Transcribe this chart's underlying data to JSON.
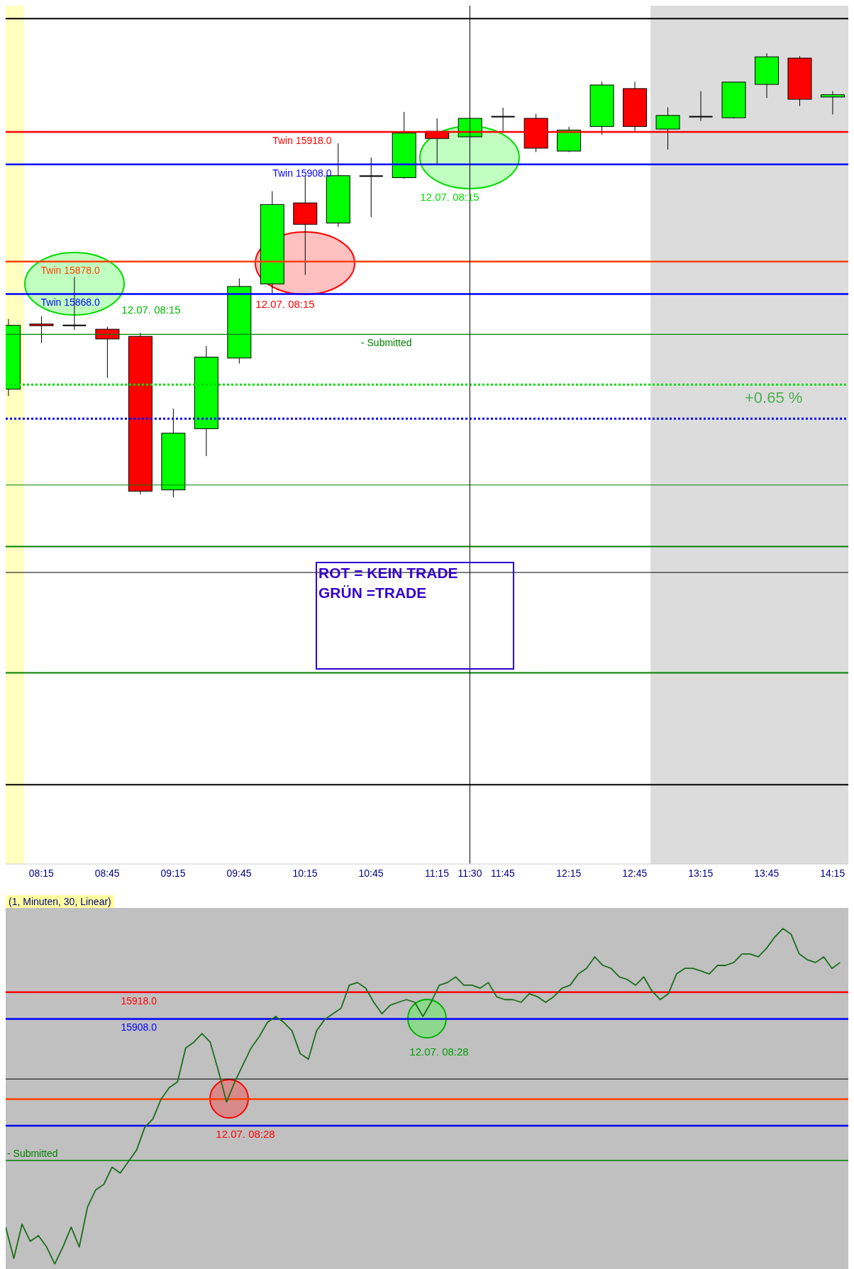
{
  "chart_data": [
    {
      "type": "candlestick",
      "x": [
        8,
        8.25,
        8.5,
        8.75,
        9,
        9.25,
        9.5,
        9.75,
        10,
        10.25,
        10.5,
        10.75,
        11,
        11.25,
        11.5,
        11.75,
        12,
        12.25,
        12.5,
        12.75,
        13,
        13.25,
        13.5,
        13.75,
        14,
        14.25
      ],
      "ohlc": [
        [
          15838.6,
          15860.3,
          15836.5,
          15858.3
        ],
        [
          15858.7,
          15861.1,
          15852.8,
          15858.2
        ],
        [
          15858.3,
          15873.2,
          15856.9,
          15858.3
        ],
        [
          15857.1,
          15857.9,
          15842.1,
          15854.1
        ],
        [
          15854.9,
          15856,
          15806.1,
          15807.1
        ],
        [
          15807.5,
          15832.6,
          15805.2,
          15825
        ],
        [
          15826.4,
          15851.9,
          15817.9,
          15848.5
        ],
        [
          15848.2,
          15872.8,
          15846.5,
          15870.3
        ],
        [
          15871.1,
          15899.7,
          15868.3,
          15895.6
        ],
        [
          15896.1,
          15904.3,
          15873.9,
          15889.5
        ],
        [
          15889.9,
          15914.5,
          15888.7,
          15904.5
        ],
        [
          15904.4,
          15910.1,
          15891.7,
          15904.4
        ],
        [
          15903.9,
          15924.2,
          15903.6,
          15917.7
        ],
        [
          15918.2,
          15922.2,
          15908.1,
          15916
        ],
        [
          15916.5,
          15922.2,
          15916.5,
          15922.2
        ],
        [
          15922.7,
          15925.5,
          15918,
          15922.7
        ],
        [
          15922.2,
          15923.6,
          15911.8,
          15913
        ],
        [
          15912.1,
          15919.6,
          15911.8,
          15918.6
        ],
        [
          15919.7,
          15933.5,
          15917.1,
          15932.5
        ],
        [
          15931.4,
          15933.5,
          15918.3,
          15919.7
        ],
        [
          15918.9,
          15925.6,
          15912.6,
          15923.1
        ],
        [
          15922.7,
          15930.6,
          15921.4,
          15922.7
        ],
        [
          15922.4,
          15933.4,
          15922.2,
          15933.4
        ],
        [
          15932.7,
          15942.3,
          15928.5,
          15941.2
        ],
        [
          15940.8,
          15941.4,
          15926,
          15928.1
        ],
        [
          15928.8,
          15930.6,
          15923.4,
          15929.5
        ]
      ],
      "colors": [
        "#00ff00",
        "#ff0000",
        "#000000",
        "#ff0000",
        "#ff0000",
        "#00ff00",
        "#00ff00",
        "#00ff00",
        "#00ff00",
        "#ff0000",
        "#00ff00",
        "#000000",
        "#00ff00",
        "#ff0000",
        "#00ff00",
        "#000000",
        "#ff0000",
        "#00ff00",
        "#00ff00",
        "#ff0000",
        "#00ff00",
        "#000000",
        "#00ff00",
        "#00ff00",
        "#ff0000",
        "#00ff00"
      ],
      "xlim": [
        7.98,
        14.37
      ],
      "ylim": [
        15692,
        15957
      ],
      "xticks": [
        {
          "value": 8.25,
          "label": "08:15"
        },
        {
          "value": 8.75,
          "label": "08:45"
        },
        {
          "value": 9.25,
          "label": "09:15"
        },
        {
          "value": 9.75,
          "label": "09:45"
        },
        {
          "value": 10.25,
          "label": "10:15"
        },
        {
          "value": 10.75,
          "label": "10:45"
        },
        {
          "value": 11.25,
          "label": "11:15"
        },
        {
          "value": 11.5,
          "label": "11:30"
        },
        {
          "value": 11.75,
          "label": "11:45"
        },
        {
          "value": 12.25,
          "label": "12:15"
        },
        {
          "value": 12.75,
          "label": "12:45"
        },
        {
          "value": 13.25,
          "label": "13:15"
        },
        {
          "value": 13.75,
          "label": "13:45"
        },
        {
          "value": 14.25,
          "label": "14:15"
        }
      ],
      "tick_labels": "x",
      "bands": [
        {
          "axis": "x",
          "from": 7.98,
          "to": 8.12,
          "color": "#ffffc0"
        },
        {
          "axis": "x",
          "from": 12.87,
          "to": 14.37,
          "color": "#dcdcdc"
        }
      ],
      "ref_lines": [
        {
          "axis": "y",
          "value": 15953,
          "color": "#000000"
        },
        {
          "axis": "y",
          "value": 15918,
          "label": "Twin 15918.0",
          "color": "#ff0000"
        },
        {
          "axis": "y",
          "value": 15908,
          "label": "Twin 15908.0",
          "color": "#0000ff"
        },
        {
          "axis": "y",
          "value": 15878,
          "label": "Twin 15878.0",
          "color": "#ff4000"
        },
        {
          "axis": "y",
          "value": 15868,
          "label": "Twin 15868.0",
          "color": "#0000ff"
        },
        {
          "axis": "y",
          "value": 15855.5,
          "label": "- Submitted",
          "color": "#008000"
        },
        {
          "axis": "y",
          "value": 15840,
          "color": "#00dd00",
          "line_style": "dotted"
        },
        {
          "axis": "y",
          "value": 15829.5,
          "color": "#0000ff",
          "line_style": "dotted"
        },
        {
          "axis": "y",
          "value": 15809,
          "color": "#008000"
        },
        {
          "axis": "y",
          "value": 15790,
          "color": "#008000"
        },
        {
          "axis": "y",
          "value": 15751,
          "color": "#008000"
        },
        {
          "axis": "y",
          "value": 15716.5,
          "color": "#000000"
        },
        {
          "axis": "y",
          "value": 15782,
          "color": "#000000"
        },
        {
          "axis": "x",
          "value": 11.5,
          "color": "#000000"
        }
      ],
      "annotations": [
        "12.07. 08:15",
        "12.07. 08:15",
        "12.07. 08:15",
        "+0.65 %",
        "ROT = KEIN TRADE",
        "GRÜN =TRADE"
      ]
    },
    {
      "type": "line",
      "subtitle": "(1, Minuten, 30, Linear)",
      "categories": [
        null,
        null,
        null,
        null,
        null,
        null,
        null,
        null,
        null,
        null,
        null,
        null,
        null,
        null,
        null,
        null,
        null,
        null,
        null,
        null,
        null,
        null,
        null,
        null,
        null,
        null,
        null,
        null,
        null,
        null,
        null,
        null,
        null,
        null,
        null,
        null,
        null,
        null,
        null,
        null,
        null,
        null,
        null,
        null,
        null,
        null,
        null,
        null,
        null,
        null,
        null,
        null,
        null,
        null,
        null,
        null,
        null,
        null,
        null,
        null,
        null,
        null,
        null,
        null,
        null,
        null,
        null,
        null,
        null,
        null,
        null,
        null,
        null,
        null,
        null,
        null,
        null,
        null,
        null,
        null,
        null,
        null,
        null,
        null,
        null,
        null,
        null,
        null,
        null,
        null,
        null,
        null,
        null,
        null,
        null,
        null,
        null,
        null,
        null,
        null,
        null,
        null,
        null
      ],
      "series": [
        {
          "color": "#1a6e1a",
          "values": [
            15830.1,
            15818.4,
            15831.2,
            15824.8,
            15826.9,
            15822.7,
            15816.3,
            15822.7,
            15830.1,
            15822.7,
            15837.6,
            15844,
            15846.1,
            15852.5,
            15850.3,
            15854.6,
            15858.9,
            15867.4,
            15870.6,
            15878,
            15882.3,
            15884.4,
            15897.1,
            15899.3,
            15902.5,
            15899.3,
            15888.6,
            15876.9,
            15884.4,
            15890.8,
            15897.1,
            15901.4,
            15906.7,
            15908.9,
            15906.7,
            15903.5,
            15895,
            15892.9,
            15903.5,
            15907.8,
            15909.9,
            15912,
            15920.6,
            15921.6,
            15919.5,
            15914.2,
            15909.9,
            15913.1,
            15914.2,
            15915.2,
            15914.2,
            15908.9,
            15914.2,
            15920.6,
            15921.6,
            15923.7,
            15920.6,
            15920.6,
            15919.5,
            15921.6,
            15916.3,
            15915.2,
            15915.2,
            15914.2,
            15917.4,
            15916.3,
            15914.2,
            15916.3,
            15919.5,
            15920.6,
            15924.8,
            15926.9,
            15931.2,
            15928,
            15926.9,
            15923.7,
            15922.7,
            15920.6,
            15923.7,
            15918.4,
            15915.2,
            15917.4,
            15924.8,
            15926.9,
            15926.9,
            15925.9,
            15924.8,
            15928,
            15928,
            15929.1,
            15932.3,
            15932.3,
            15931.2,
            15934.4,
            15938.6,
            15941.8,
            15939.7,
            15932.3,
            15930.1,
            15929.1,
            15931.2,
            15926.9,
            15929.1
          ]
        }
      ],
      "ylim": [
        15811.5,
        15949.5
      ],
      "tick_labels": false,
      "ref_lines": [
        {
          "axis": "y",
          "value": 15918,
          "label": "15918.0",
          "color": "#ff0000"
        },
        {
          "axis": "y",
          "value": 15908,
          "label": "15908.0",
          "color": "#0000ff"
        },
        {
          "axis": "y",
          "value": 15885.5,
          "color": "#000000"
        },
        {
          "axis": "y",
          "value": 15878,
          "color": "#ff4000"
        },
        {
          "axis": "y",
          "value": 15868,
          "color": "#0000ff"
        },
        {
          "axis": "y",
          "value": 15855,
          "label": "- Submitted",
          "color": "#008000"
        }
      ],
      "annotations": [
        "12.07. 08:28",
        "12.07. 08:28"
      ]
    }
  ]
}
